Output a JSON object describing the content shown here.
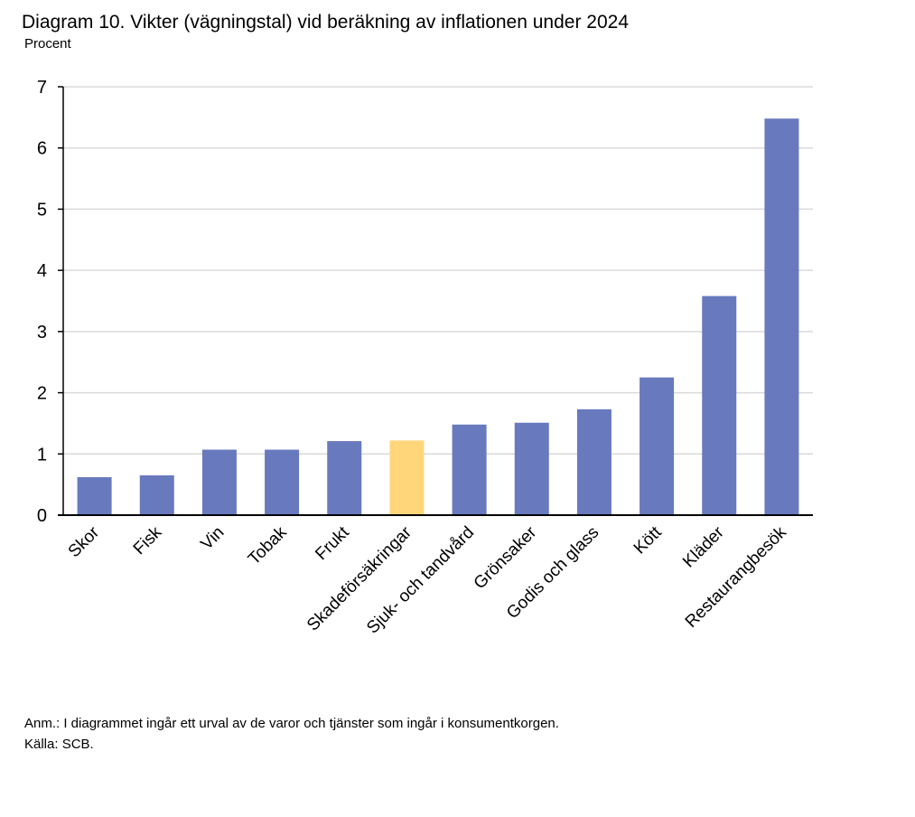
{
  "header": {
    "title": "Diagram 10. Vikter (vägningstal) vid beräkning av inflationen under 2024",
    "subtitle": "Procent"
  },
  "footer": {
    "note": "Anm.: I diagrammet ingår ett urval av de varor och tjänster som ingår i konsumentkorgen.",
    "source": "Källa: SCB."
  },
  "colors": {
    "bar": "#6879bd",
    "highlight": "#ffd67a",
    "grid": "#d9d9d9",
    "axis": "#000000"
  },
  "chart_data": {
    "type": "bar",
    "title": "Diagram 10. Vikter (vägningstal) vid beräkning av inflationen under 2024",
    "ylabel": "Procent",
    "xlabel": "",
    "ylim": [
      0,
      7
    ],
    "yticks": [
      0,
      1,
      2,
      3,
      4,
      5,
      6,
      7
    ],
    "grid": true,
    "legend": "none",
    "categories": [
      "Skor",
      "Fisk",
      "Vin",
      "Tobak",
      "Frukt",
      "Skadeförsäkringar",
      "Sjuk- och tandvård",
      "Grönsaker",
      "Godis och glass",
      "Kött",
      "Kläder",
      "Restaurangbesök"
    ],
    "values": [
      0.62,
      0.65,
      1.07,
      1.07,
      1.21,
      1.22,
      1.48,
      1.51,
      1.73,
      2.25,
      3.58,
      6.48
    ],
    "highlighted_category": "Skadeförsäkringar"
  }
}
